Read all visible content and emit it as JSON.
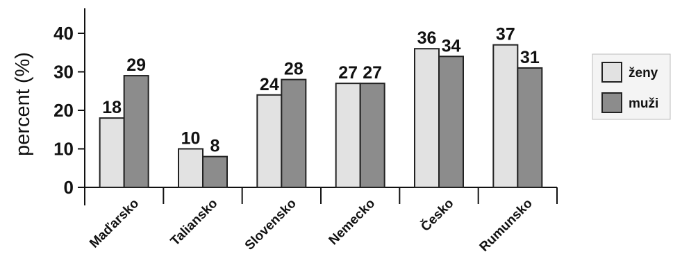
{
  "chart_data": {
    "type": "bar",
    "ylabel": "percent (%)",
    "xlabel": "",
    "ylim": [
      0,
      40
    ],
    "yticks": [
      0,
      10,
      20,
      30,
      40
    ],
    "grid": false,
    "legend": "right",
    "categories": [
      "Maďarsko",
      "Taliansko",
      "Slovensko",
      "Nemecko",
      "Česko",
      "Rumunsko"
    ],
    "series": [
      {
        "name": "ženy",
        "color": "#e2e2e2",
        "values": [
          18,
          10,
          24,
          27,
          36,
          37
        ]
      },
      {
        "name": "muži",
        "color": "#8c8c8c",
        "values": [
          29,
          8,
          28,
          27,
          34,
          31
        ]
      }
    ]
  }
}
